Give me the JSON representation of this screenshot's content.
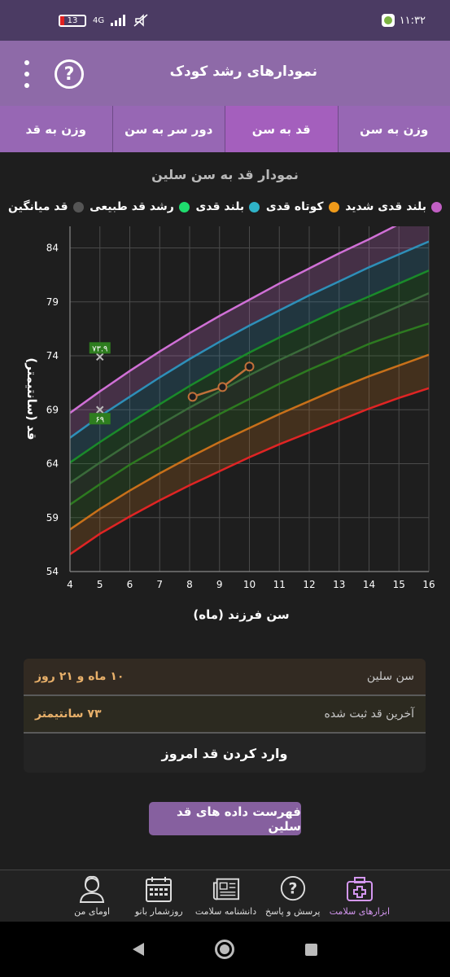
{
  "status_bar": {
    "battery": "13",
    "network": "4G",
    "time": "۱۱:۳۲"
  },
  "header": {
    "title": "نمودارهای رشد کودک",
    "menu_icon": "more-vert-icon",
    "help_icon": "help-circle-icon"
  },
  "tabs": [
    {
      "label": "وزن به سن",
      "active": false
    },
    {
      "label": "قد به سن",
      "active": true
    },
    {
      "label": "دور سر به سن",
      "active": false
    },
    {
      "label": "وزن به قد",
      "active": false
    }
  ],
  "chart_title": "نمودار قد به سن سلین",
  "legend": [
    {
      "label": "بلند قدی شدید",
      "color": "#c15fc4"
    },
    {
      "label": "کوتاه قدی",
      "color": "#ef9a1a"
    },
    {
      "label": "بلند قدی",
      "color": "#2fb3c8"
    },
    {
      "label": "رشد قد طبیعی",
      "color": "#1fdc6e"
    },
    {
      "label": "قد میانگین",
      "color": "#555555"
    }
  ],
  "chart_data": {
    "type": "line",
    "xlabel": "سن فرزند (ماه)",
    "ylabel": "قد (سانتیمتر)",
    "xlim": [
      4,
      16
    ],
    "ylim": [
      54,
      86
    ],
    "x_ticks": [
      "4",
      "5",
      "6",
      "7",
      "8",
      "9",
      "10",
      "11",
      "12",
      "13",
      "14",
      "15",
      "16"
    ],
    "y_ticks": [
      "54",
      "59",
      "64",
      "69",
      "74",
      "79",
      "84"
    ],
    "grid": true,
    "x": [
      4,
      5,
      6,
      7,
      8,
      9,
      10,
      11,
      12,
      13,
      14,
      15,
      16
    ],
    "series": [
      {
        "color": "#d070d6",
        "values": [
          68.7,
          70.7,
          72.6,
          74.4,
          76.1,
          77.7,
          79.2,
          80.7,
          82.1,
          83.5,
          84.8,
          86.2,
          87.6
        ]
      },
      {
        "color": "#2e8fb8",
        "values": [
          66.4,
          68.4,
          70.2,
          72.0,
          73.7,
          75.3,
          76.8,
          78.2,
          79.6,
          80.9,
          82.2,
          83.4,
          84.6
        ]
      },
      {
        "color": "#1a8a2a",
        "values": [
          64.1,
          66.0,
          67.8,
          69.5,
          71.2,
          72.8,
          74.3,
          75.7,
          77.0,
          78.3,
          79.5,
          80.7,
          81.9
        ]
      },
      {
        "color": "#3a6a3a",
        "values": [
          62.2,
          64.1,
          65.9,
          67.6,
          69.2,
          70.7,
          72.2,
          73.6,
          74.9,
          76.2,
          77.4,
          78.6,
          79.8
        ]
      },
      {
        "color": "#2d7a20",
        "values": [
          60.2,
          62.1,
          63.9,
          65.5,
          67.1,
          68.6,
          70.0,
          71.4,
          72.7,
          73.9,
          75.1,
          76.1,
          77.0
        ]
      },
      {
        "color": "#c8701a",
        "values": [
          57.9,
          59.8,
          61.5,
          63.1,
          64.6,
          66.0,
          67.3,
          68.6,
          69.8,
          71.0,
          72.1,
          73.1,
          74.1
        ]
      },
      {
        "color": "#e02424",
        "values": [
          55.6,
          57.5,
          59.1,
          60.6,
          62.0,
          63.3,
          64.6,
          65.8,
          66.9,
          68.0,
          69.1,
          70.1,
          71.0
        ]
      }
    ],
    "child_points": [
      {
        "x": 8.1,
        "y": 70.2
      },
      {
        "x": 9.1,
        "y": 71.1
      },
      {
        "x": 10.0,
        "y": 73.0
      }
    ],
    "markers": [
      {
        "x": 5,
        "y": 73.9,
        "label": "۷۳.۹"
      },
      {
        "x": 5,
        "y": 69.0,
        "label": "۶۹"
      }
    ]
  },
  "info": {
    "age_label": "سن سلین",
    "age_value": "۱۰ ماه و ۲۱ روز",
    "height_label": "آخرین قد ثبت شده",
    "height_value": "۷۳ سانتیمتر",
    "today_button": "وارد کردن قد امروز"
  },
  "list_button": "فهرست داده های قد سلین",
  "bottom_nav": [
    {
      "label": "ابزارهای سلامت",
      "icon": "medical-bag-icon",
      "active": true
    },
    {
      "label": "پرسش و پاسخ",
      "icon": "question-bubble-icon",
      "active": false
    },
    {
      "label": "دانشنامه سلامت",
      "icon": "newspaper-icon",
      "active": false
    },
    {
      "label": "روزشمار بانو",
      "icon": "calendar-icon",
      "active": false
    },
    {
      "label": "اومای من",
      "icon": "user-avatar-icon",
      "active": false
    }
  ]
}
